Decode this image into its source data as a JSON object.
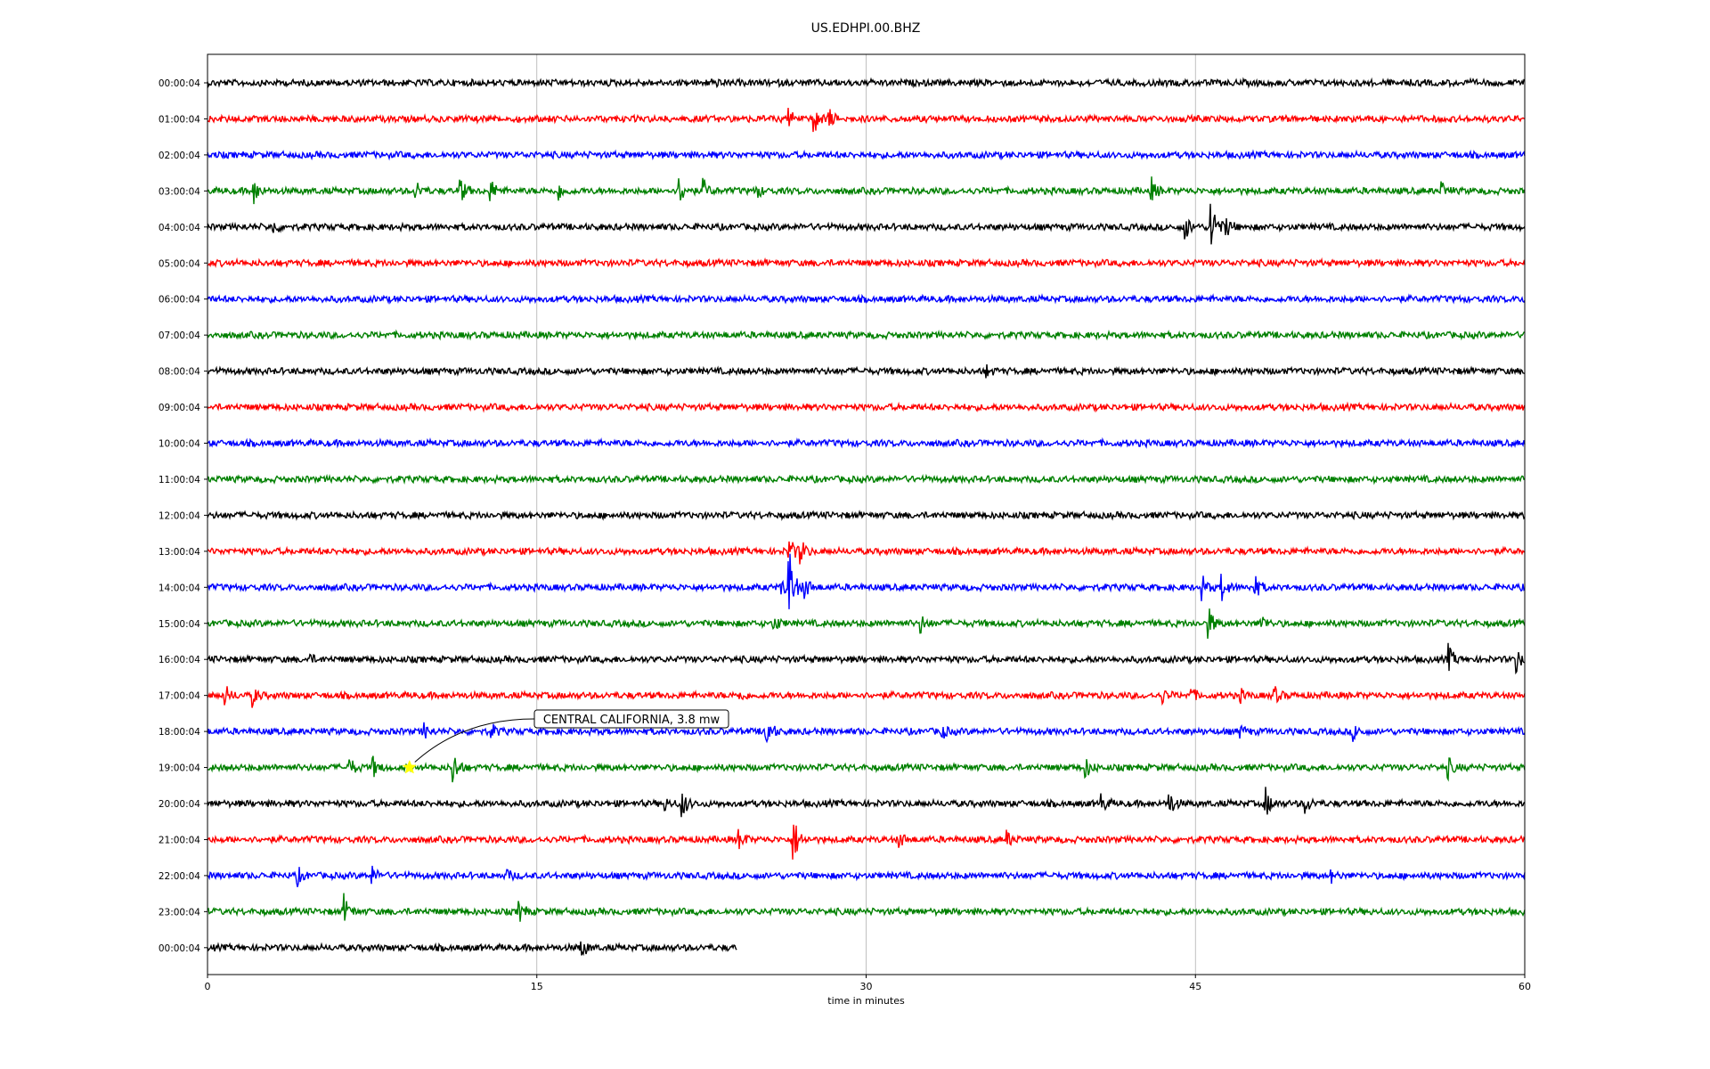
{
  "chart_data": {
    "type": "line",
    "title": "US.EDHPI.00.BHZ",
    "xlabel": "time in minutes",
    "ylabel": "",
    "xlim": [
      0,
      60
    ],
    "x_ticks": [
      0,
      15,
      30,
      45,
      60
    ],
    "x_tick_labels": [
      "0",
      "15",
      "30",
      "45",
      "60"
    ],
    "grid": "vertical lines at x ticks",
    "line_colors": [
      "#000000",
      "#ff0000",
      "#0000ff",
      "#008000"
    ],
    "rows": [
      {
        "label": "00:00:04",
        "end_minute": 60,
        "events": [
          {
            "t": 23,
            "amp": 0.25
          }
        ]
      },
      {
        "label": "01:00:04",
        "end_minute": 60,
        "events": [
          {
            "t": 26.5,
            "amp": 0.5
          },
          {
            "t": 27.6,
            "amp": 1.1
          },
          {
            "t": 28.3,
            "amp": 0.6
          }
        ]
      },
      {
        "label": "02:00:04",
        "end_minute": 60,
        "events": []
      },
      {
        "label": "03:00:04",
        "end_minute": 60,
        "events": [
          {
            "t": 2.1,
            "amp": 0.8
          },
          {
            "t": 9.5,
            "amp": 0.6
          },
          {
            "t": 11.5,
            "amp": 0.8
          },
          {
            "t": 12.9,
            "amp": 0.7
          },
          {
            "t": 16,
            "amp": 0.5
          },
          {
            "t": 21.5,
            "amp": 0.9
          },
          {
            "t": 22.6,
            "amp": 0.6
          },
          {
            "t": 25,
            "amp": 0.4
          },
          {
            "t": 43,
            "amp": 0.7
          },
          {
            "t": 56.2,
            "amp": 0.5
          }
        ]
      },
      {
        "label": "04:00:04",
        "end_minute": 60,
        "events": [
          {
            "t": 3,
            "amp": 0.4
          },
          {
            "t": 44.5,
            "amp": 0.9
          },
          {
            "t": 45.7,
            "amp": 2.2
          },
          {
            "t": 46.4,
            "amp": 0.6
          }
        ]
      },
      {
        "label": "05:00:04",
        "end_minute": 60,
        "events": []
      },
      {
        "label": "06:00:04",
        "end_minute": 60,
        "events": []
      },
      {
        "label": "07:00:04",
        "end_minute": 60,
        "events": []
      },
      {
        "label": "08:00:04",
        "end_minute": 60,
        "events": [
          {
            "t": 35.5,
            "amp": 0.3
          }
        ]
      },
      {
        "label": "09:00:04",
        "end_minute": 60,
        "events": []
      },
      {
        "label": "10:00:04",
        "end_minute": 60,
        "events": []
      },
      {
        "label": "11:00:04",
        "end_minute": 60,
        "events": []
      },
      {
        "label": "12:00:04",
        "end_minute": 60,
        "events": []
      },
      {
        "label": "13:00:04",
        "end_minute": 60,
        "events": [
          {
            "t": 26.5,
            "amp": 0.9
          },
          {
            "t": 27,
            "amp": 0.8
          }
        ]
      },
      {
        "label": "14:00:04",
        "end_minute": 60,
        "events": [
          {
            "t": 26.1,
            "amp": 0.6
          },
          {
            "t": 26.5,
            "amp": 2.3
          },
          {
            "t": 27.2,
            "amp": 0.7
          },
          {
            "t": 45.3,
            "amp": 0.7
          },
          {
            "t": 46.2,
            "amp": 0.8
          },
          {
            "t": 47.7,
            "amp": 0.7
          }
        ]
      },
      {
        "label": "15:00:04",
        "end_minute": 60,
        "events": [
          {
            "t": 25.8,
            "amp": 0.5
          },
          {
            "t": 32.5,
            "amp": 0.5
          },
          {
            "t": 45.6,
            "amp": 0.9
          },
          {
            "t": 48,
            "amp": 0.5
          }
        ]
      },
      {
        "label": "16:00:04",
        "end_minute": 60,
        "events": [
          {
            "t": 4.6,
            "amp": 0.3
          },
          {
            "t": 56.5,
            "amp": 0.9
          },
          {
            "t": 59.6,
            "amp": 0.8
          }
        ]
      },
      {
        "label": "17:00:04",
        "end_minute": 60,
        "events": [
          {
            "t": 0.8,
            "amp": 0.6
          },
          {
            "t": 2,
            "amp": 0.7
          },
          {
            "t": 24.2,
            "amp": 0.3
          },
          {
            "t": 43.5,
            "amp": 0.4
          },
          {
            "t": 44.8,
            "amp": 0.4
          },
          {
            "t": 47,
            "amp": 0.4
          },
          {
            "t": 48.6,
            "amp": 0.5
          }
        ]
      },
      {
        "label": "18:00:04",
        "end_minute": 60,
        "events": [
          {
            "t": 9.8,
            "amp": 0.6
          },
          {
            "t": 12.9,
            "amp": 0.5
          },
          {
            "t": 25.4,
            "amp": 1.4
          },
          {
            "t": 33.4,
            "amp": 0.5
          },
          {
            "t": 47,
            "amp": 0.4
          },
          {
            "t": 52.2,
            "amp": 0.5
          }
        ]
      },
      {
        "label": "19:00:04",
        "end_minute": 60,
        "events": [
          {
            "t": 6.5,
            "amp": 0.5
          },
          {
            "t": 7.5,
            "amp": 0.7
          },
          {
            "t": 11.2,
            "amp": 1.0
          },
          {
            "t": 40,
            "amp": 0.6
          },
          {
            "t": 56.5,
            "amp": 0.6
          }
        ]
      },
      {
        "label": "20:00:04",
        "end_minute": 60,
        "events": [
          {
            "t": 20.8,
            "amp": 0.4
          },
          {
            "t": 21.6,
            "amp": 0.9
          },
          {
            "t": 40.7,
            "amp": 0.6
          },
          {
            "t": 43.8,
            "amp": 0.8
          },
          {
            "t": 48.2,
            "amp": 0.9
          },
          {
            "t": 50,
            "amp": 0.6
          }
        ]
      },
      {
        "label": "21:00:04",
        "end_minute": 60,
        "events": [
          {
            "t": 24.2,
            "amp": 0.7
          },
          {
            "t": 26.7,
            "amp": 1.4
          },
          {
            "t": 31.5,
            "amp": 0.5
          },
          {
            "t": 36.4,
            "amp": 0.5
          }
        ]
      },
      {
        "label": "22:00:04",
        "end_minute": 60,
        "events": [
          {
            "t": 4.1,
            "amp": 0.5
          },
          {
            "t": 7.5,
            "amp": 0.5
          },
          {
            "t": 13.6,
            "amp": 0.4
          },
          {
            "t": 51.2,
            "amp": 0.3
          }
        ]
      },
      {
        "label": "23:00:04",
        "end_minute": 60,
        "events": [
          {
            "t": 6.2,
            "amp": 1.0
          },
          {
            "t": 14.2,
            "amp": 0.6
          }
        ]
      },
      {
        "label": "00:00:04",
        "end_minute": 24.1,
        "events": [
          {
            "t": 17,
            "amp": 0.7
          }
        ]
      }
    ],
    "annotation": {
      "text": "CENTRAL CALIFORNIA, 3.8 mw",
      "row_label": "19:00:04",
      "row_index": 19,
      "minute": 9.2,
      "marker": "star",
      "marker_color": "#ffff00"
    }
  }
}
